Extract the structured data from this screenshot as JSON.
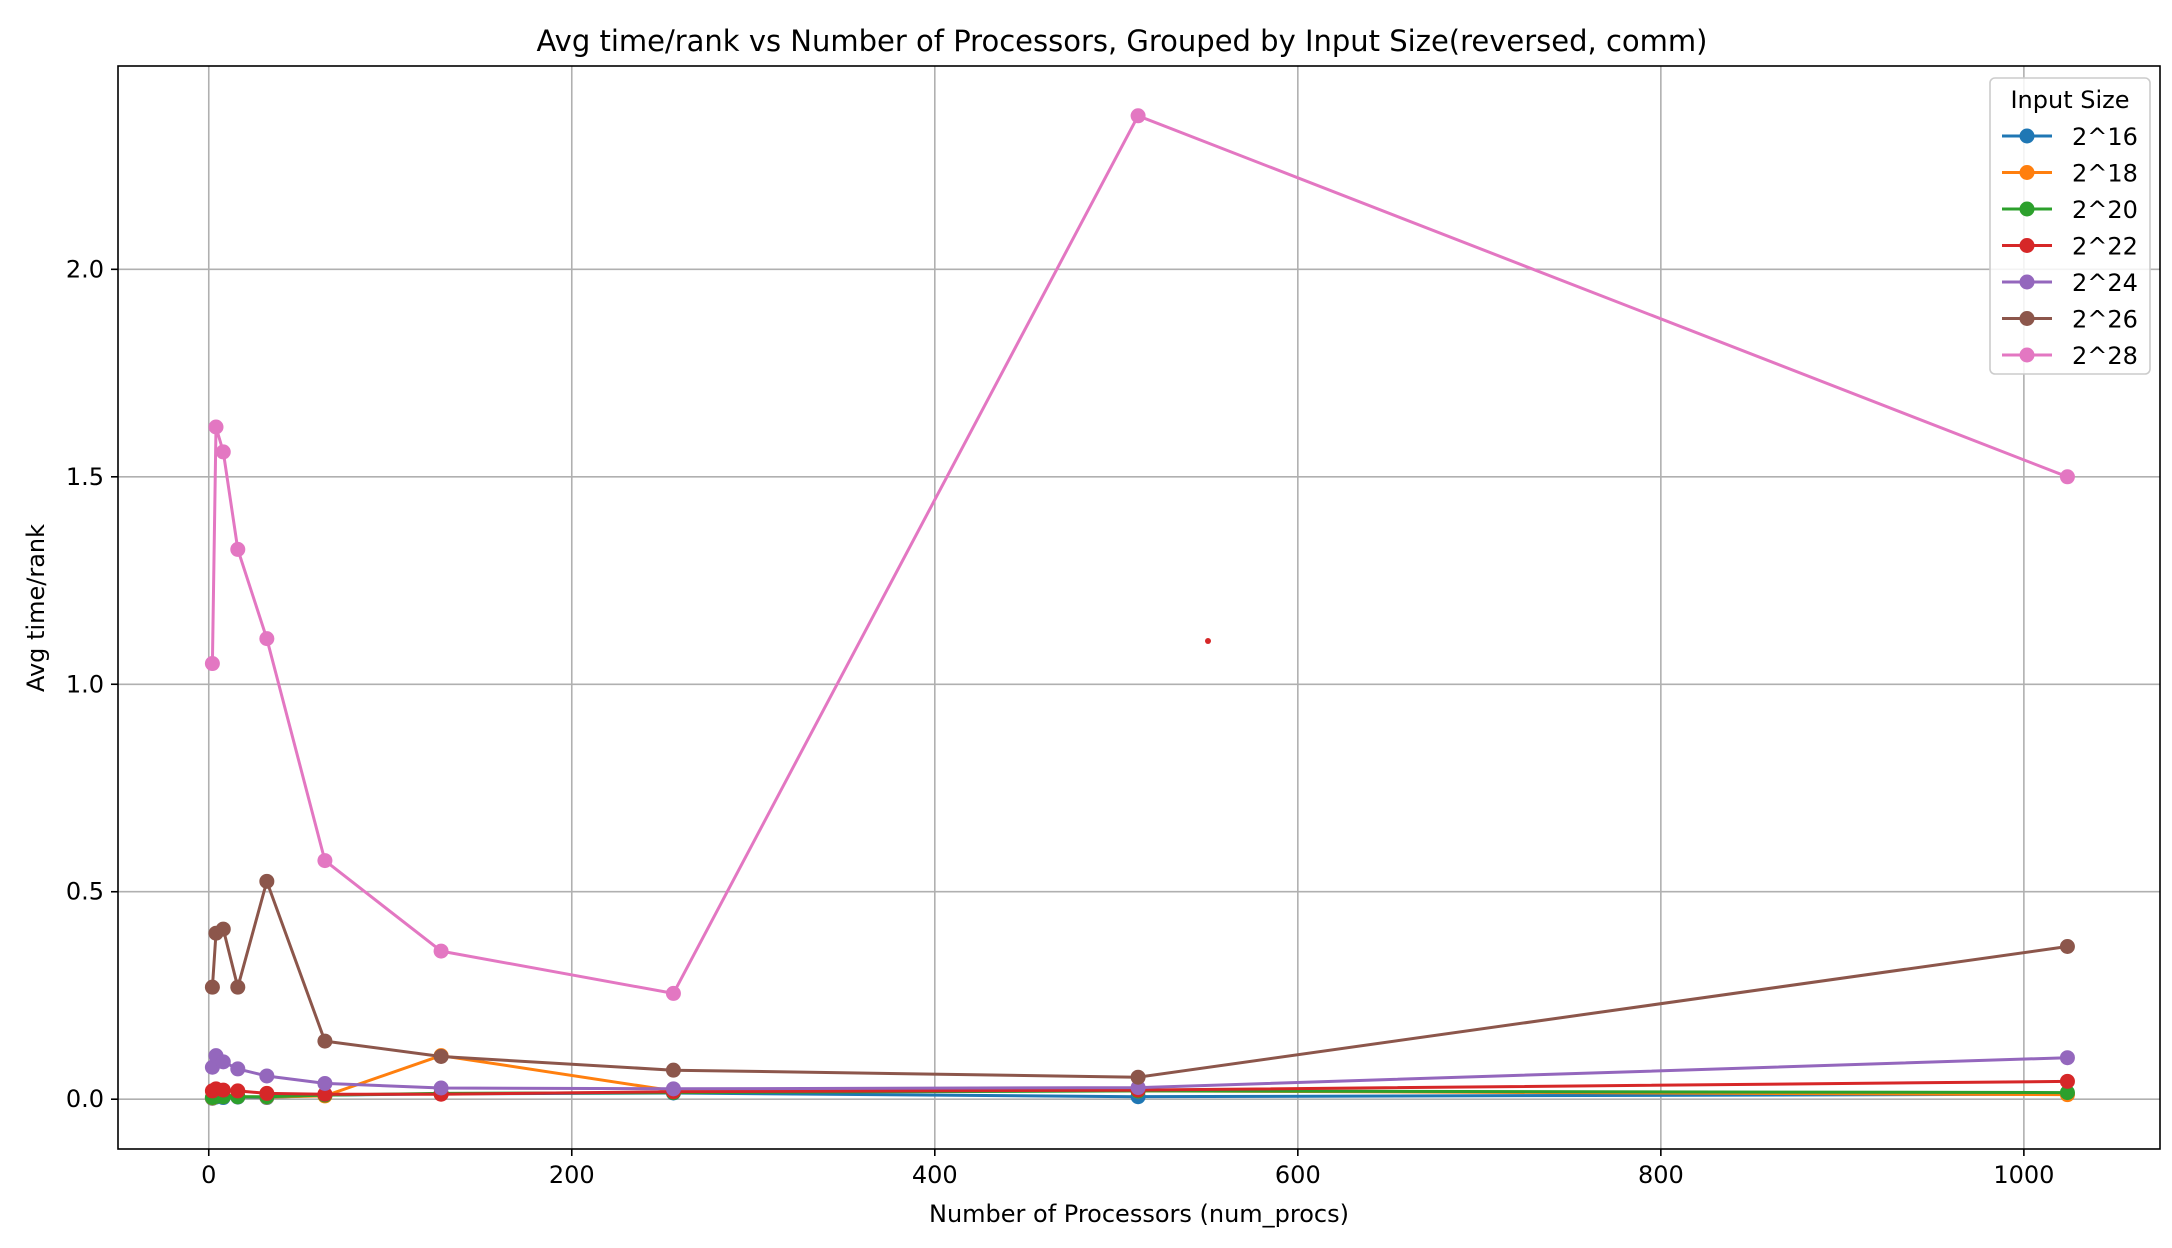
{
  "chart_data": {
    "type": "line",
    "title": "Avg time/rank vs Number of Processors, Grouped by Input Size(reversed, comm)",
    "xlabel": "Number of Processors (num_procs)",
    "ylabel": "Avg time/rank",
    "xlim": [
      -50,
      1075
    ],
    "ylim": [
      -0.12,
      2.49
    ],
    "xticks": [
      0,
      200,
      400,
      600,
      800,
      1000
    ],
    "yticks": [
      0.0,
      0.5,
      1.0,
      1.5,
      2.0
    ],
    "xtick_labels": [
      "0",
      "200",
      "400",
      "600",
      "800",
      "1000"
    ],
    "ytick_labels": [
      "0.0",
      "0.5",
      "1.0",
      "1.5",
      "2.0"
    ],
    "grid": true,
    "legend": {
      "title": "Input Size",
      "placement": "top-right"
    },
    "x": [
      2,
      4,
      8,
      16,
      32,
      64,
      128,
      256,
      512,
      1024
    ],
    "series": [
      {
        "name": "2^16",
        "color": "#1f77b4",
        "values": [
          0.002,
          0.005,
          0.004,
          0.005,
          0.004,
          0.01,
          0.013,
          0.015,
          0.006,
          0.012
        ]
      },
      {
        "name": "2^18",
        "color": "#ff7f0e",
        "values": [
          0.003,
          0.007,
          0.006,
          0.006,
          0.005,
          0.008,
          0.105,
          0.02,
          0.02,
          0.011
        ]
      },
      {
        "name": "2^20",
        "color": "#2ca02c",
        "values": [
          0.004,
          0.007,
          0.006,
          0.006,
          0.006,
          0.01,
          0.014,
          0.016,
          0.02,
          0.016
        ]
      },
      {
        "name": "2^22",
        "color": "#d62728",
        "values": [
          0.02,
          0.025,
          0.022,
          0.02,
          0.014,
          0.012,
          0.012,
          0.018,
          0.022,
          0.043
        ]
      },
      {
        "name": "2^24",
        "color": "#9467bd",
        "values": [
          0.077,
          0.105,
          0.09,
          0.073,
          0.056,
          0.038,
          0.027,
          0.025,
          0.028,
          0.1
        ]
      },
      {
        "name": "2^26",
        "color": "#8c564b",
        "values": [
          0.27,
          0.4,
          0.41,
          0.27,
          0.525,
          0.14,
          0.103,
          0.07,
          0.053,
          0.368
        ]
      },
      {
        "name": "2^28",
        "color": "#e377c2",
        "values": [
          1.05,
          1.62,
          1.56,
          1.325,
          1.11,
          0.575,
          0.357,
          0.255,
          2.37,
          1.5
        ]
      }
    ]
  }
}
